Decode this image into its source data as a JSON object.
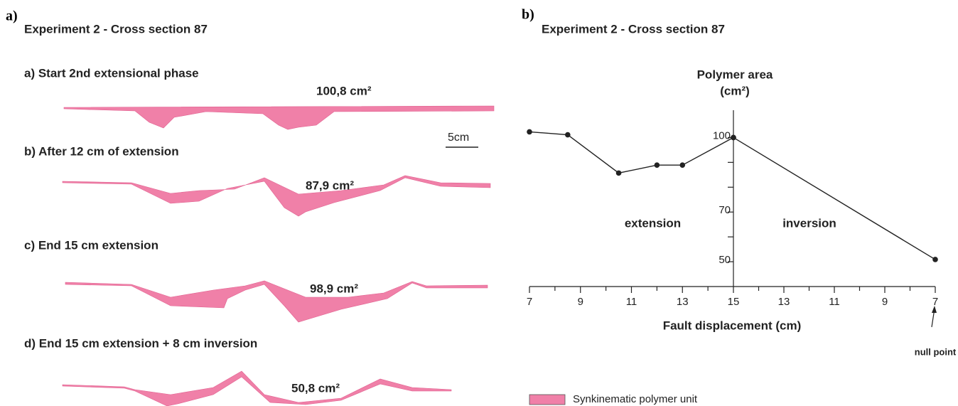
{
  "panel_a": {
    "label": "a)",
    "title": "Experiment 2 - Cross section 87",
    "sections": [
      {
        "caption": "a) Start 2nd extensional phase",
        "area": "100,8 cm²"
      },
      {
        "caption": "b) After 12 cm of extension",
        "area": "87,9 cm²"
      },
      {
        "caption": "c) End 15 cm extension",
        "area": "98,9 cm²"
      },
      {
        "caption": "d) End 15 cm extension + 8 cm inversion",
        "area": "50,8 cm²"
      }
    ],
    "scale_bar": "5cm",
    "legend": "Synkinematic polymer unit"
  },
  "chart_data": {
    "type": "line",
    "panel_label": "b)",
    "title": "Experiment 2 - Cross section 87",
    "y_label": "Polymer area",
    "y_unit": "(cm²)",
    "x_label": "Fault displacement (cm)",
    "annotation": "null point",
    "series": [
      {
        "name": "extension",
        "color": "#222222",
        "mirrored": false,
        "x": [
          7,
          8.5,
          10.5,
          12,
          13,
          15
        ],
        "values": [
          102.3,
          101.1,
          85.7,
          88.9,
          88.9,
          100
        ]
      },
      {
        "name": "inversion",
        "color": "#222222",
        "mirrored": true,
        "x": [
          15,
          7
        ],
        "values": [
          100,
          50.9
        ]
      }
    ],
    "xlim": [
      7,
      15
    ],
    "xticks": [
      7,
      9,
      11,
      13,
      15
    ],
    "xminor": [
      8,
      10,
      12,
      14
    ],
    "ylim": [
      40,
      111
    ],
    "yticks": [
      50,
      70,
      100
    ],
    "yminor": [
      60,
      80,
      90
    ]
  }
}
